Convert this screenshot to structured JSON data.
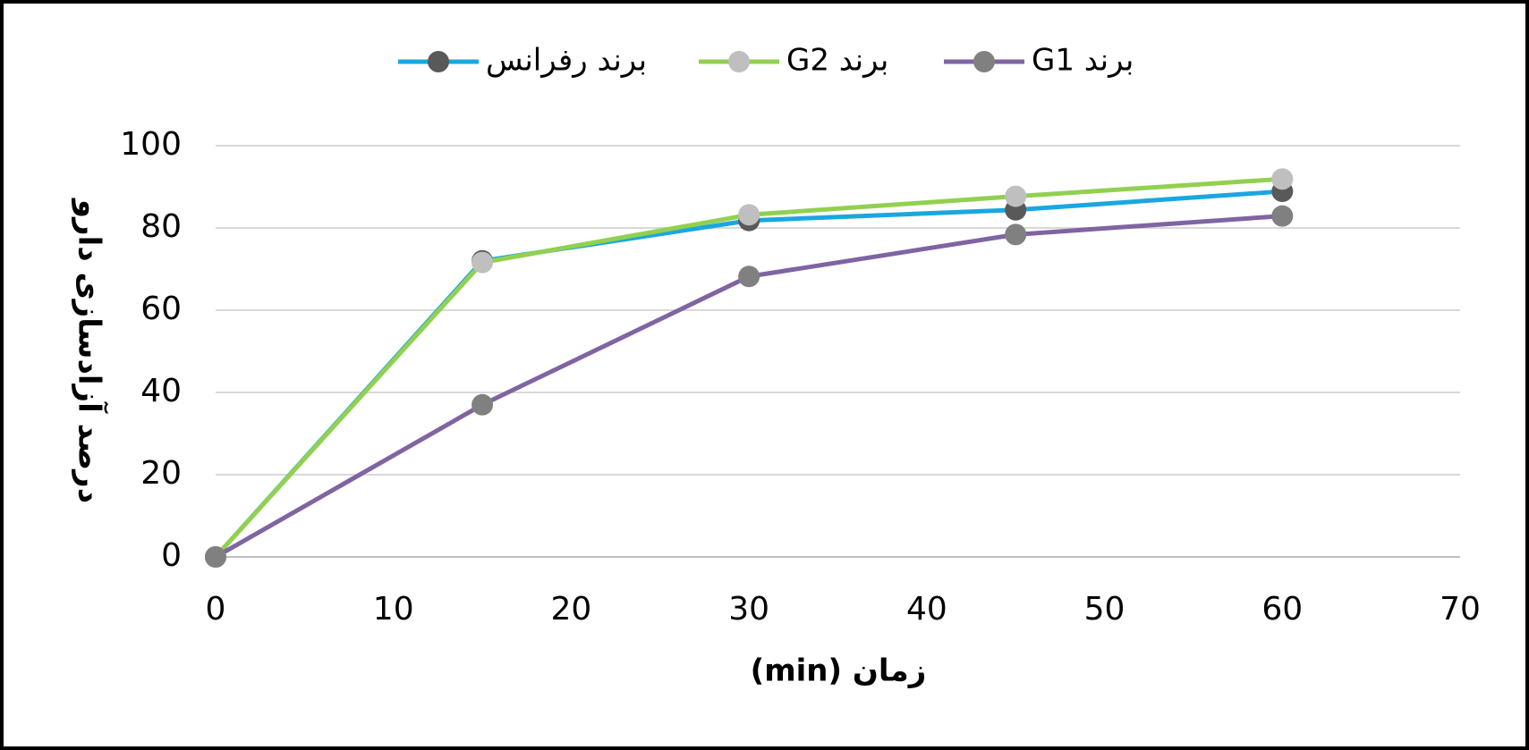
{
  "chart_data": {
    "type": "line",
    "x_label": "زمان (min)",
    "y_label": "درصد آزادسازی دارو",
    "x": [
      0,
      15,
      30,
      45,
      60
    ],
    "series": [
      {
        "name": "برند رفرانس",
        "color": "#1aa7e0",
        "marker_color": "#595959",
        "values": [
          0,
          72,
          81.8,
          84.4,
          88.9
        ]
      },
      {
        "name": "برند G2",
        "color": "#92d050",
        "marker_color": "#bfbfbf",
        "values": [
          0,
          71.6,
          83.2,
          87.7,
          91.9
        ]
      },
      {
        "name": "برند G1",
        "color": "#8064a2",
        "marker_color": "#808080",
        "values": [
          0,
          37,
          68.2,
          78.4,
          82.9
        ]
      }
    ],
    "xlim": [
      0,
      70
    ],
    "xticks": [
      0,
      10,
      20,
      30,
      40,
      50,
      60,
      70
    ],
    "ylim": [
      0,
      100
    ],
    "yticks": [
      0,
      20,
      40,
      60,
      80,
      100
    ],
    "grid": true,
    "legend": "top"
  }
}
